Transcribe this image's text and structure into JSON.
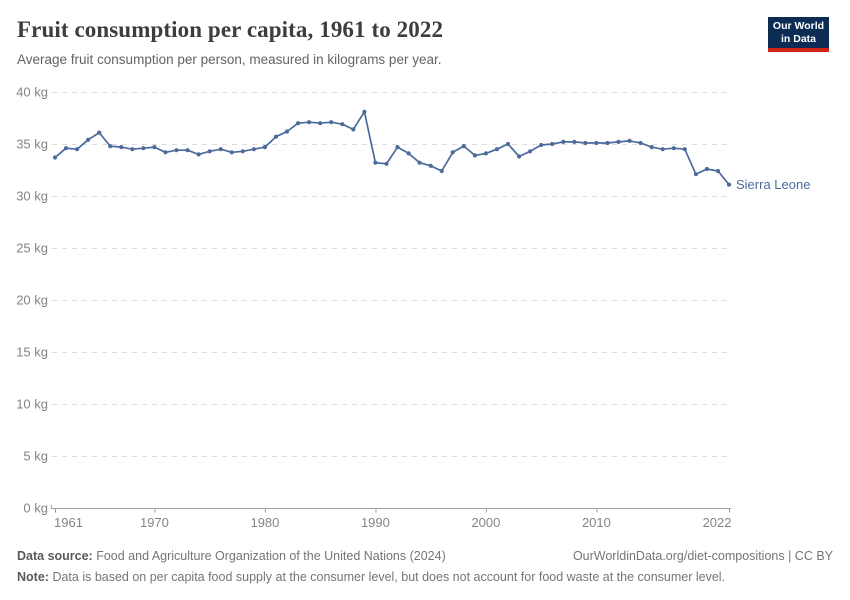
{
  "header": {
    "logo": {
      "line1": "Our World",
      "line2": "in Data",
      "bg": "#0d2c54",
      "accent": "#cf2318"
    }
  },
  "chart_data": {
    "type": "line",
    "title": "Fruit consumption per capita, 1961 to 2022",
    "subtitle": "Average fruit consumption per person, measured in kilograms per year.",
    "xlabel": "",
    "ylabel": "",
    "xlim": [
      1961,
      2022
    ],
    "ylim": [
      0,
      40
    ],
    "x_ticks": [
      1961,
      1970,
      1980,
      1990,
      2000,
      2010,
      2022
    ],
    "y_ticks": [
      0,
      5,
      10,
      15,
      20,
      25,
      30,
      35,
      40
    ],
    "y_tick_suffix": " kg",
    "grid": "horizontal-dashed",
    "legend_position": "end-of-line-label",
    "x": [
      1961,
      1962,
      1963,
      1964,
      1965,
      1966,
      1967,
      1968,
      1969,
      1970,
      1971,
      1972,
      1973,
      1974,
      1975,
      1976,
      1977,
      1978,
      1979,
      1980,
      1981,
      1982,
      1983,
      1984,
      1985,
      1986,
      1987,
      1988,
      1989,
      1990,
      1991,
      1992,
      1993,
      1994,
      1995,
      1996,
      1997,
      1998,
      1999,
      2000,
      2001,
      2002,
      2003,
      2004,
      2005,
      2006,
      2007,
      2008,
      2009,
      2010,
      2011,
      2012,
      2013,
      2014,
      2015,
      2016,
      2017,
      2018,
      2019,
      2020,
      2021,
      2022
    ],
    "series": [
      {
        "name": "Sierra Leone",
        "color": "#4C6A9C",
        "values": [
          33.7,
          34.6,
          34.5,
          35.4,
          36.1,
          34.8,
          34.7,
          34.5,
          34.6,
          34.7,
          34.2,
          34.4,
          34.4,
          34.0,
          34.3,
          34.5,
          34.2,
          34.3,
          34.5,
          34.7,
          35.7,
          36.2,
          37.0,
          37.1,
          37.0,
          37.1,
          36.9,
          36.4,
          38.1,
          33.2,
          33.1,
          34.7,
          34.1,
          33.2,
          32.9,
          32.4,
          34.2,
          34.8,
          33.9,
          34.1,
          34.5,
          35.0,
          33.8,
          34.3,
          34.9,
          35.0,
          35.2,
          35.2,
          35.1,
          35.1,
          35.1,
          35.2,
          35.3,
          35.1,
          34.7,
          34.5,
          34.6,
          34.5,
          32.1,
          32.6,
          32.4,
          31.1
        ]
      }
    ]
  },
  "footer": {
    "data_source_label": "Data source:",
    "data_source": "Food and Agriculture Organization of the United Nations (2024)",
    "link": "OurWorldinData.org/diet-compositions | CC BY",
    "note_label": "Note:",
    "note": "Data is based on per capita food supply at the consumer level, but does not account for food waste at the consumer level."
  },
  "colors": {
    "line": "#4C6A9C",
    "entity_label": "#4C6A9C",
    "gridline": "#dcdcdc",
    "axis": "#9e9e9e",
    "tick_text": "#858585",
    "title_text": "#3d3d3d",
    "subtitle_text": "#636363"
  }
}
